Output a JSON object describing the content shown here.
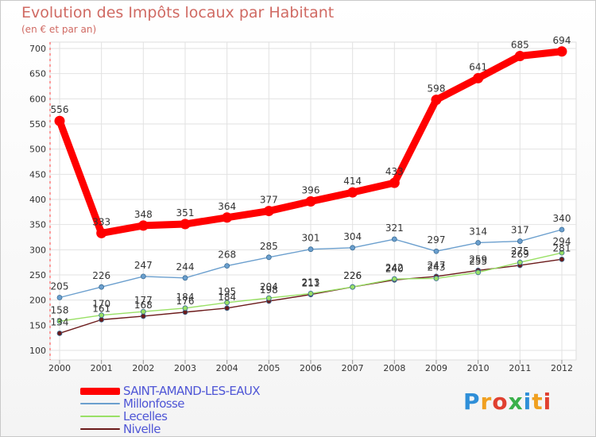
{
  "chart_data": {
    "type": "line",
    "title": "Evolution des Impôts locaux par Habitant",
    "subtitle": "(en € et par an)",
    "xlabel": "",
    "ylabel": "",
    "ylim": [
      100,
      700
    ],
    "yticks": [
      100,
      150,
      200,
      250,
      300,
      350,
      400,
      450,
      500,
      550,
      600,
      650,
      700
    ],
    "categories": [
      "2000",
      "2001",
      "2002",
      "2003",
      "2004",
      "2005",
      "2006",
      "2007",
      "2008",
      "2009",
      "2010",
      "2011",
      "2012"
    ],
    "series": [
      {
        "name": "SAINT-AMAND-LES-EAUX",
        "color": "#ff0000",
        "values": [
          556,
          333,
          348,
          351,
          364,
          377,
          396,
          414,
          433,
          598,
          641,
          685,
          694
        ]
      },
      {
        "name": "Millonfosse",
        "color": "#6b9fce",
        "values": [
          205,
          226,
          247,
          244,
          268,
          285,
          301,
          304,
          321,
          297,
          314,
          317,
          340
        ]
      },
      {
        "name": "Lecelles",
        "color": "#99e065",
        "values": [
          158,
          170,
          177,
          184,
          195,
          204,
          213,
          226,
          242,
          243,
          255,
          275,
          294
        ]
      },
      {
        "name": "Nivelle",
        "color": "#6b1a1a",
        "values": [
          134,
          161,
          168,
          176,
          184,
          198,
          211,
          226,
          240,
          247,
          259,
          269,
          281
        ]
      }
    ],
    "grid": true,
    "legend_position": "bottom-left"
  },
  "logo": {
    "text": "Proxiti",
    "letters": [
      "P",
      "r",
      "o",
      "x",
      "i",
      "t",
      "i"
    ],
    "colors": [
      "#2f8fd8",
      "#f0a020",
      "#e04030",
      "#3ab04a",
      "#2f8fd8",
      "#f0a020",
      "#e04030"
    ]
  }
}
